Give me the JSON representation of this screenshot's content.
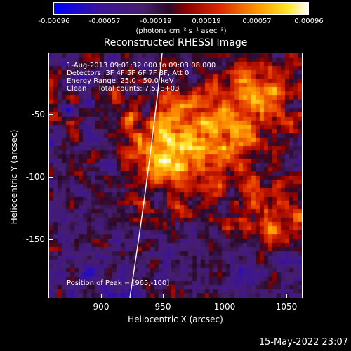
{
  "colorbar": {
    "ticks": [
      "-0.00096",
      "-0.00057",
      "-0.00019",
      "0.00019",
      "0.00057",
      "0.00096"
    ],
    "units": "(photons cm⁻² s⁻¹ asec⁻²)"
  },
  "title": "Reconstructed RHESSI Image",
  "info": {
    "time": "1-Aug-2013 09:01:32.000 to 09:03:08.000",
    "detectors": "Detectors: 3F 4F 5F 6F 7F 8F, Att 0",
    "energy": "Energy Range: 25.0 - 50.0 keV",
    "clean": "Clean     Total counts: 7.53E+03",
    "peak": "Position of Peak = [965,-100]"
  },
  "axes": {
    "xlabel": "Heliocentric X (arcsec)",
    "ylabel": "Heliocentric Y (arcsec)",
    "xticks": [
      "900",
      "950",
      "1000",
      "1050"
    ],
    "yticks": [
      "-50",
      "-100",
      "-150"
    ]
  },
  "timestamp": "15-May-2022 23:07",
  "colors": {
    "background": "#000000",
    "text": "#ffffff"
  }
}
